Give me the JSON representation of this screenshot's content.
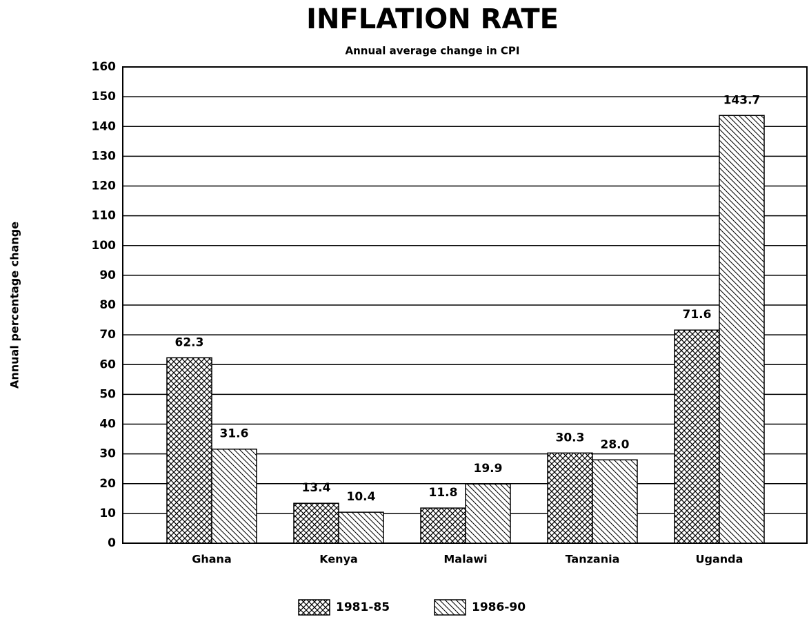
{
  "chart_data": {
    "type": "bar",
    "title": "INFLATION RATE",
    "subtitle": "Annual average change in CPI",
    "y_label": "Annual percentage change",
    "categories": [
      "Ghana",
      "Kenya",
      "Malawi",
      "Tanzania",
      "Uganda"
    ],
    "series": [
      {
        "name": "1981-85",
        "color": "#000000",
        "pattern": "crosshatch",
        "values": [
          62.3,
          13.4,
          11.8,
          30.3,
          71.6
        ],
        "value_labels": [
          "62.3",
          "13.4",
          "11.8",
          "30.3",
          "71.6"
        ]
      },
      {
        "name": "1986-90",
        "color": "#000000",
        "pattern": "diagonal",
        "values": [
          31.6,
          10.4,
          19.9,
          28.0,
          143.7
        ],
        "value_labels": [
          "31.6",
          "10.4",
          "19.9",
          "28.0",
          "143.7"
        ]
      }
    ],
    "ylim": [
      0,
      160
    ],
    "yticks": [
      0,
      10,
      20,
      30,
      40,
      50,
      60,
      70,
      80,
      90,
      100,
      110,
      120,
      130,
      140,
      150,
      160
    ],
    "grid": true,
    "legend": "bottom"
  }
}
